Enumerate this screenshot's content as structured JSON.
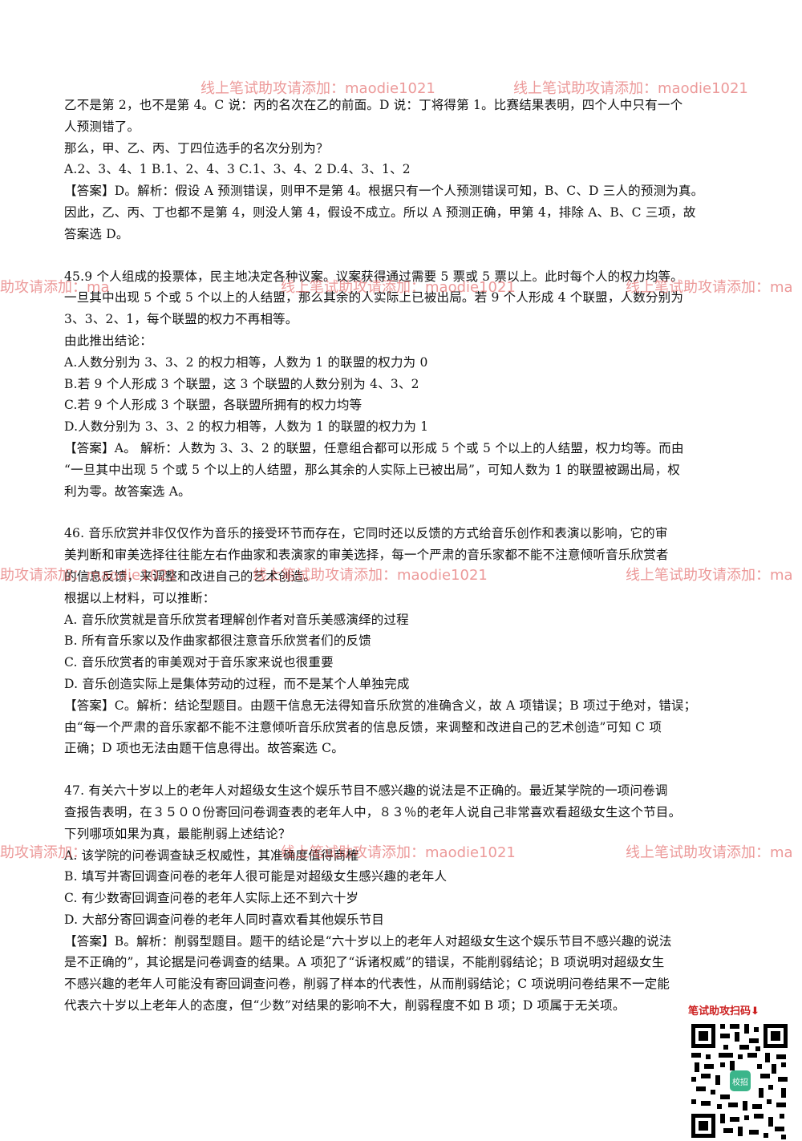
{
  "q44_tail": [
    "乙不是第 2，也不是第 4。C 说：丙的名次在乙的前面。D 说：丁将得第 1。比赛结果表明，四个人中只有一个",
    "人预测错了。",
    "那么，甲、乙、丙、丁四位选手的名次分别为？",
    "A.2、3、4、1    B.1、2、4、3   C.1、3、4、2   D.4、3、1、2",
    "【答案】D。解析：假设 A 预测错误，则甲不是第 4。根据只有一个人预测错误可知，B、C、D 三人的预测为真。",
    "因此，乙、丙、丁也都不是第 4，则没人第 4，假设不成立。所以 A 预测正确，甲第 4，排除 A、B、C 三项，故",
    "答案选 D。"
  ],
  "q45": [
    "45.9 个人组成的投票体，民主地决定各种议案。议案获得通过需要 5 票或 5 票以上。此时每个人的权力均等。",
    "一旦其中出现 5 个或 5 个以上的人结盟，那么其余的人实际上已被出局。若 9 个人形成 4 个联盟，人数分别为",
    "3、3、2、1，每个联盟的权力不再相等。",
    "由此推出结论：",
    "A.人数分别为 3、3、2 的权力相等，人数为 1 的联盟的权力为 0",
    "B.若 9 个人形成 3 个联盟，这 3 个联盟的人数分别为 4、3、2",
    "C.若 9 个人形成 3 个联盟，各联盟所拥有的权力均等",
    "D.人数分别为 3、3、2 的权力相等，人数为 1 的联盟的权力为 1",
    "【答案】A。 解析：人数为 3、3、2 的联盟，任意组合都可以形成 5 个或 5 个以上的人结盟，权力均等。而由",
    "“一旦其中出现 5 个或 5 个以上的人结盟，那么其余的人实际上已被出局”，可知人数为 1 的联盟被踢出局，权",
    "利为零。故答案选 A。"
  ],
  "q46": [
    "46. 音乐欣赏并非仅仅作为音乐的接受环节而存在，它同时还以反馈的方式给音乐创作和表演以影响，它的审",
    "美判断和审美选择往往能左右作曲家和表演家的审美选择，每一个严肃的音乐家都不能不注意倾听音乐欣赏者",
    "的信息反馈，来调整和改进自己的艺术创造。",
    "根据以上材料，可以推断：",
    "A. 音乐欣赏就是音乐欣赏者理解创作者对音乐美感演绎的过程",
    "B. 所有音乐家以及作曲家都很注意音乐欣赏者们的反馈",
    "C. 音乐欣赏者的审美观对于音乐家来说也很重要",
    "D. 音乐创造实际上是集体劳动的过程，而不是某个人单独完成",
    "【答案】C。解析：结论型题目。由题干信息无法得知音乐欣赏的准确含义，故 A 项错误；B 项过于绝对，错误；",
    "由“每一个严肃的音乐家都不能不注意倾听音乐欣赏者的信息反馈，来调整和改进自己的艺术创造”可知 C 项",
    "正确；D 项也无法由题干信息得出。故答案选 C。"
  ],
  "q47": [
    "47. 有关六十岁以上的老年人对超级女生这个娱乐节目不感兴趣的说法是不正确的。最近某学院的一项问卷调",
    "查报告表明，在３５００份寄回问卷调查表的老年人中，８３％的老年人说自己非常喜欢看超级女生这个节目。",
    "下列哪项如果为真，最能削弱上述结论？",
    "A. 该学院的问卷调查缺乏权威性，其准确度值得商榷",
    "B. 填写并寄回调查问卷的老年人很可能是对超级女生感兴趣的老年人",
    "C. 有少数寄回调查问卷的老年人实际上还不到六十岁",
    "D. 大部分寄回调查问卷的老年人同时喜欢看其他娱乐节目",
    "【答案】B。解析：削弱型题目。题干的结论是“六十岁以上的老年人对超级女生这个娱乐节目不感兴趣的说法",
    "是不正确的”，其论据是问卷调查的结果。A 项犯了“诉诸权威”的错误，不能削弱结论；B 项说明对超级女生",
    "不感兴趣的老年人可能没有寄回调查问卷，削弱了样本的代表性，从而削弱结论；C 项说明问卷结果不一定能",
    "代表六十岁以上老年人的态度，但“少数”对结果的影响不大，削弱程度不如 B 项；D 项属于无关项。"
  ],
  "watermarks": {
    "row1_left": "线上笔试助攻请添加：maodie1021",
    "row1_right": "线上笔试助攻请添加：maodie1021",
    "row2_left": "助攻请添加：ma",
    "row2_mid": "线上笔试助攻请添加：maodie1021",
    "row2_right": "线上笔试助攻请添加：ma",
    "row3_left": "助攻请添加：maodie1021",
    "row3_mid": "线上笔试助攻请添加：maodie1021",
    "row3_right": "线上笔试助攻请添加：ma",
    "row4_left": "助攻请添加：",
    "row4_mid": "线上笔试助攻请添加：maodie1021",
    "row4_right": "线上笔试助攻请添加：ma"
  },
  "qr": {
    "label": "笔试助攻扫码⬇",
    "center_text": "校招"
  },
  "colors": {
    "watermark": "#dc4646",
    "qr_label": "#cc1f1f",
    "qr_center": "#3bb58a"
  }
}
